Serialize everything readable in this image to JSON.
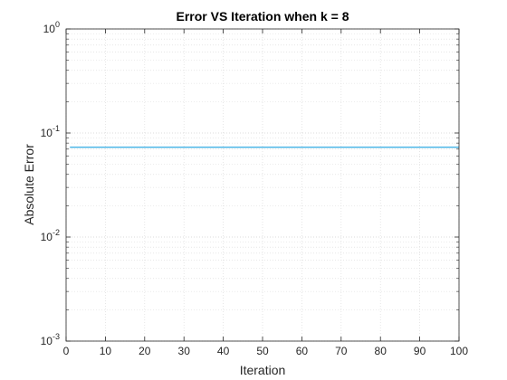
{
  "chart_data": {
    "type": "line",
    "title": "Error VS Iteration when k = 8",
    "xlabel": "Iteration",
    "ylabel": "Absolute Error",
    "xlim": [
      0,
      100
    ],
    "ylim": [
      0.001,
      1
    ],
    "yscale": "log",
    "x_ticks": [
      0,
      10,
      20,
      30,
      40,
      50,
      60,
      70,
      80,
      90,
      100
    ],
    "y_ticks": [
      {
        "base": "10",
        "exp": "0",
        "value": 1
      },
      {
        "base": "10",
        "exp": "-1",
        "value": 0.1
      },
      {
        "base": "10",
        "exp": "-2",
        "value": 0.01
      },
      {
        "base": "10",
        "exp": "-3",
        "value": 0.001
      }
    ],
    "grid": true,
    "minor_grid": true,
    "series": [
      {
        "color": "#0072BD",
        "x": [
          1,
          100
        ],
        "y": [
          0.0731,
          0.0731
        ]
      },
      {
        "color": "#4DBEEE",
        "x": [
          1,
          100
        ],
        "y": [
          0.0728,
          0.0728
        ]
      }
    ]
  }
}
